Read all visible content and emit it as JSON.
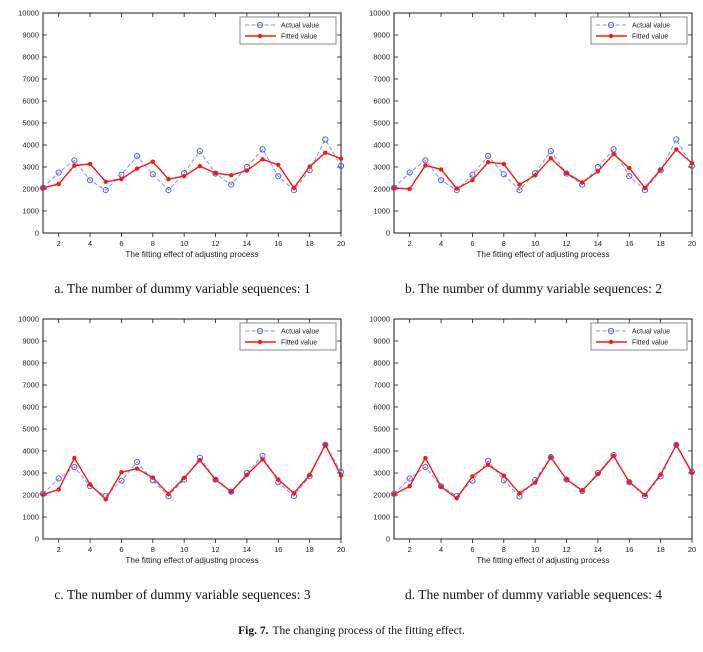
{
  "figure": {
    "caption_label": "Fig. 7.",
    "caption_text": "The changing process of the fitting effect."
  },
  "colors": {
    "actual_line": "#8a8af2",
    "actual_marker": "#5c5cee",
    "fitted": "#f01d12",
    "axis": "#1a1a1a",
    "legend_border": "#8a8a8a",
    "background": "#ffffff"
  },
  "chart_data": [
    {
      "type": "line",
      "caption": "a. The number of dummy variable sequences: 1",
      "xlabel": "The fitting effect of adjusting process",
      "xlim": [
        1,
        20
      ],
      "ylim": [
        0,
        10000
      ],
      "xticks": [
        2,
        4,
        6,
        8,
        10,
        12,
        14,
        16,
        18,
        20
      ],
      "yticks": [
        0,
        1000,
        2000,
        3000,
        4000,
        5000,
        6000,
        7000,
        8000,
        9000,
        10000
      ],
      "legend_position": "top-right",
      "x": [
        1,
        2,
        3,
        4,
        5,
        6,
        7,
        8,
        9,
        10,
        11,
        12,
        13,
        14,
        15,
        16,
        17,
        18,
        19,
        20
      ],
      "series": [
        {
          "name": "Actual value",
          "dashed": true,
          "marker": "open-circle",
          "line_color": "#8a8af2",
          "marker_color": "#5c5cee",
          "values": [
            2050,
            2750,
            3300,
            2400,
            1950,
            2650,
            3500,
            2670,
            1950,
            2720,
            3720,
            2700,
            2200,
            3000,
            3800,
            2580,
            1950,
            2850,
            4250,
            3050
          ]
        },
        {
          "name": "Fitted value",
          "dashed": false,
          "marker": "filled-circle",
          "line_color": "#f01d12",
          "marker_color": "#f01d12",
          "values": [
            2050,
            2230,
            3060,
            3140,
            2330,
            2450,
            2930,
            3240,
            2450,
            2580,
            3040,
            2720,
            2630,
            2840,
            3350,
            3100,
            2050,
            3020,
            3650,
            3380
          ]
        }
      ]
    },
    {
      "type": "line",
      "caption": "b. The number of dummy variable sequences: 2",
      "xlabel": "The fitting effect of adjusting process",
      "xlim": [
        1,
        20
      ],
      "ylim": [
        0,
        10000
      ],
      "xticks": [
        2,
        4,
        6,
        8,
        10,
        12,
        14,
        16,
        18,
        20
      ],
      "yticks": [
        0,
        1000,
        2000,
        3000,
        4000,
        5000,
        6000,
        7000,
        8000,
        9000,
        10000
      ],
      "legend_position": "top-right",
      "x": [
        1,
        2,
        3,
        4,
        5,
        6,
        7,
        8,
        9,
        10,
        11,
        12,
        13,
        14,
        15,
        16,
        17,
        18,
        19,
        20
      ],
      "series": [
        {
          "name": "Actual value",
          "dashed": true,
          "marker": "open-circle",
          "line_color": "#8a8af2",
          "marker_color": "#5c5cee",
          "values": [
            2050,
            2750,
            3300,
            2400,
            1950,
            2650,
            3500,
            2670,
            1950,
            2720,
            3720,
            2700,
            2200,
            3000,
            3800,
            2580,
            1950,
            2850,
            4250,
            3050
          ]
        },
        {
          "name": "Fitted value",
          "dashed": false,
          "marker": "filled-circle",
          "line_color": "#f01d12",
          "marker_color": "#f01d12",
          "values": [
            2050,
            2000,
            3070,
            2890,
            2020,
            2400,
            3220,
            3140,
            2200,
            2620,
            3400,
            2720,
            2300,
            2800,
            3590,
            2950,
            2050,
            2880,
            3800,
            3170
          ]
        }
      ]
    },
    {
      "type": "line",
      "caption": "c. The number of dummy variable sequences: 3",
      "xlabel": "The fitting effect of adjusting process",
      "xlim": [
        1,
        20
      ],
      "ylim": [
        0,
        10000
      ],
      "xticks": [
        2,
        4,
        6,
        8,
        10,
        12,
        14,
        16,
        18,
        20
      ],
      "yticks": [
        0,
        1000,
        2000,
        3000,
        4000,
        5000,
        6000,
        7000,
        8000,
        9000,
        10000
      ],
      "legend_position": "top-right",
      "x": [
        1,
        2,
        3,
        4,
        5,
        6,
        7,
        8,
        9,
        10,
        11,
        12,
        13,
        14,
        15,
        16,
        17,
        18,
        19,
        20
      ],
      "series": [
        {
          "name": "Actual value",
          "dashed": true,
          "marker": "open-circle",
          "line_color": "#8a8af2",
          "marker_color": "#5c5cee",
          "values": [
            2050,
            2750,
            3270,
            2400,
            1950,
            2650,
            3500,
            2670,
            1950,
            2700,
            3700,
            2700,
            2150,
            3000,
            3780,
            2580,
            1950,
            2850,
            4280,
            3050
          ]
        },
        {
          "name": "Fitted value",
          "dashed": false,
          "marker": "filled-circle",
          "line_color": "#f01d12",
          "marker_color": "#f01d12",
          "values": [
            2020,
            2250,
            3680,
            2480,
            1800,
            3030,
            3200,
            2790,
            2050,
            2780,
            3580,
            2700,
            2150,
            2910,
            3620,
            2700,
            2080,
            2910,
            4280,
            2880
          ]
        }
      ]
    },
    {
      "type": "line",
      "caption": "d. The number of dummy variable sequences: 4",
      "xlabel": "The fitting effect of adjusting process",
      "xlim": [
        1,
        20
      ],
      "ylim": [
        0,
        10000
      ],
      "xticks": [
        2,
        4,
        6,
        8,
        10,
        12,
        14,
        16,
        18,
        20
      ],
      "yticks": [
        0,
        1000,
        2000,
        3000,
        4000,
        5000,
        6000,
        7000,
        8000,
        9000,
        10000
      ],
      "legend_position": "top-right",
      "x": [
        1,
        2,
        3,
        4,
        5,
        6,
        7,
        8,
        9,
        10,
        11,
        12,
        13,
        14,
        15,
        16,
        17,
        18,
        19,
        20
      ],
      "series": [
        {
          "name": "Actual value",
          "dashed": true,
          "marker": "open-circle",
          "line_color": "#8a8af2",
          "marker_color": "#5c5cee",
          "values": [
            2050,
            2750,
            3270,
            2400,
            1950,
            2650,
            3550,
            2670,
            1930,
            2680,
            3720,
            2700,
            2180,
            3000,
            3820,
            2580,
            1950,
            2850,
            4280,
            3050
          ]
        },
        {
          "name": "Fitted value",
          "dashed": false,
          "marker": "filled-circle",
          "line_color": "#f01d12",
          "marker_color": "#f01d12",
          "values": [
            2030,
            2400,
            3680,
            2380,
            1850,
            2850,
            3370,
            2890,
            2080,
            2560,
            3710,
            2710,
            2200,
            2950,
            3780,
            2590,
            2000,
            2930,
            4280,
            3000
          ]
        }
      ]
    }
  ]
}
